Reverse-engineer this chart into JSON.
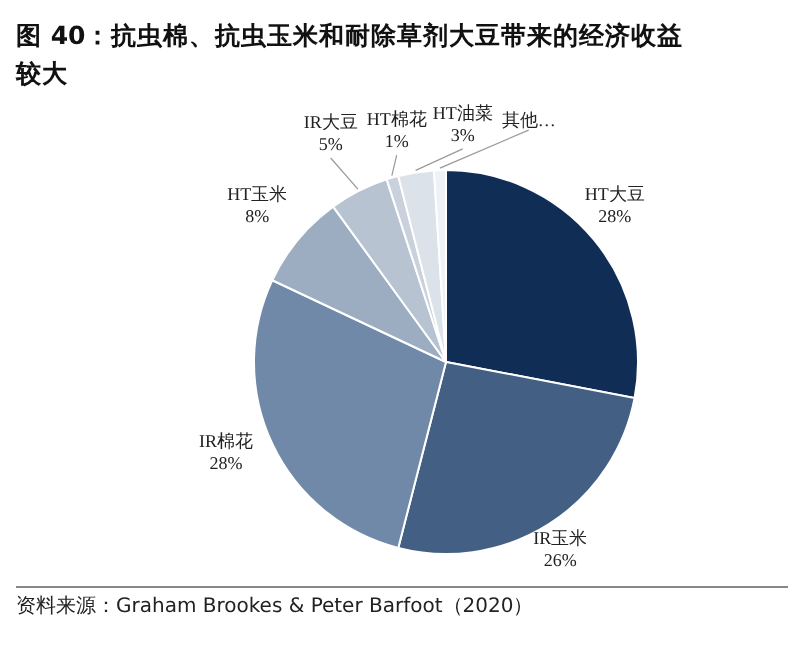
{
  "chart_data": {
    "type": "pie",
    "title": "图 40：抗虫棉、抗虫玉米和耐除草剂大豆带来的经济收益较大",
    "categories": [
      "HT大豆",
      "IR玉米",
      "IR棉花",
      "HT玉米",
      "IR大豆",
      "HT棉花",
      "HT油菜",
      "其他…"
    ],
    "values": [
      28,
      26,
      28,
      8,
      5,
      1,
      3,
      1
    ],
    "value_labels": [
      "28%",
      "26%",
      "28%",
      "8%",
      "5%",
      "1%",
      "3%",
      null
    ],
    "colors": [
      "#0f2d55",
      "#435f84",
      "#7189a8",
      "#9dadc1",
      "#b7c3d1",
      "#c8d1dc",
      "#dce2e9",
      "#eef1f5"
    ],
    "legend": false,
    "annotations": [
      "资料来源：Graham Brookes & Peter Barfoot（2020）"
    ]
  }
}
